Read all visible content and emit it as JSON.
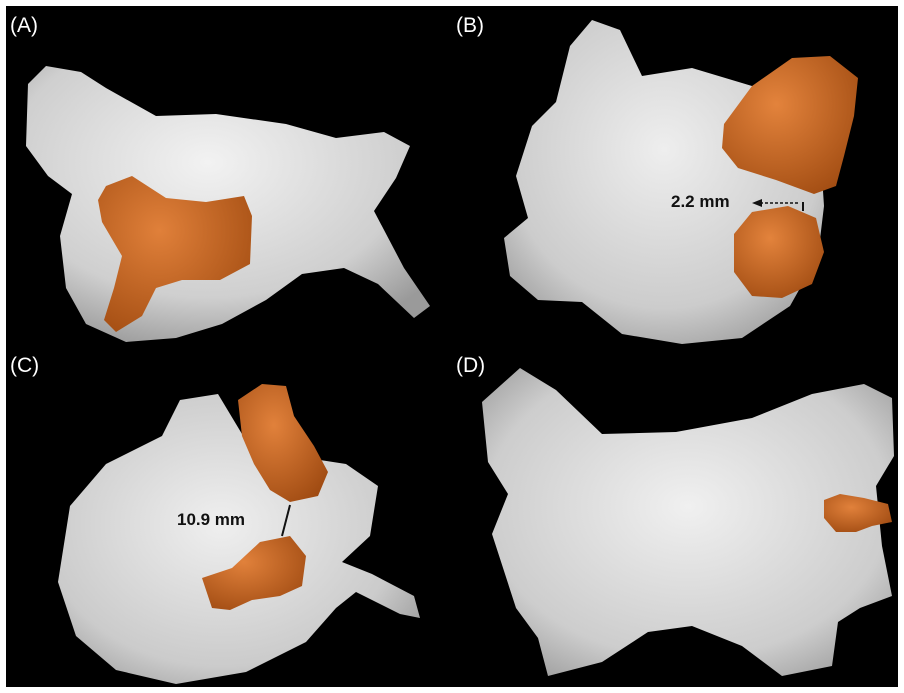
{
  "panels": [
    {
      "label": "(A)"
    },
    {
      "label": "(B)",
      "measurement": "2.2 mm"
    },
    {
      "label": "(C)",
      "measurement": "10.9 mm"
    },
    {
      "label": "(D)"
    }
  ],
  "colors": {
    "background": "#000000",
    "anatomy": "#d6d6d6",
    "structure": "#c8621e"
  }
}
